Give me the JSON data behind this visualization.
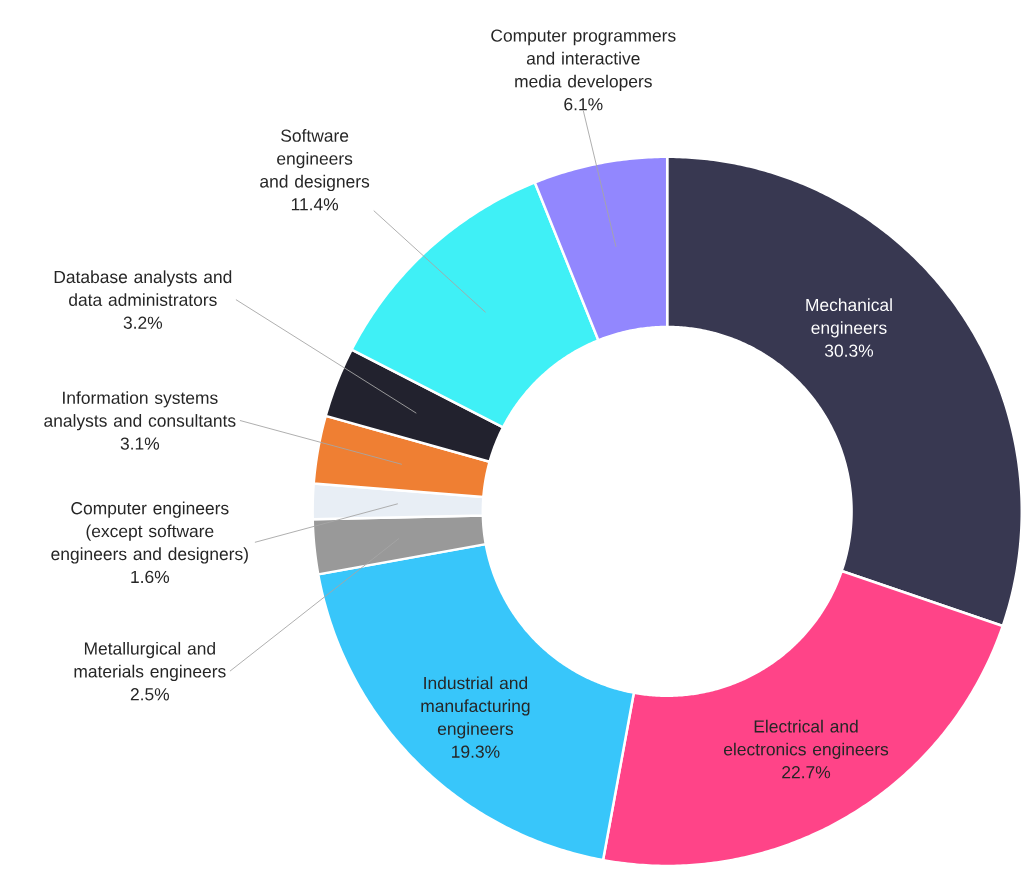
{
  "chart_data": {
    "type": "donut",
    "categories": [
      "Mechanical engineers",
      "Electrical and electronics engineers",
      "Industrial and manufacturing engineers",
      "Metallurgical and materials engineers",
      "Computer engineers (except software engineers and designers)",
      "Information systems analysts and consultants",
      "Database analysts and data administrators",
      "Software engineers and designers",
      "Computer programmers and interactive media developers"
    ],
    "values": [
      30.3,
      22.7,
      19.3,
      2.5,
      1.6,
      3.1,
      3.2,
      11.4,
      6.1
    ],
    "colors": [
      "#383851",
      "#ff4488",
      "#38c6fa",
      "#999999",
      "#e8eef5",
      "#ef7f33",
      "#22222e",
      "#3ff0f6",
      "#9287fe"
    ],
    "value_labels": [
      "30.3%",
      "22.7%",
      "19.3%",
      "2.5%",
      "1.6%",
      "3.1%",
      "3.2%",
      "11.4%",
      "6.1%"
    ]
  }
}
